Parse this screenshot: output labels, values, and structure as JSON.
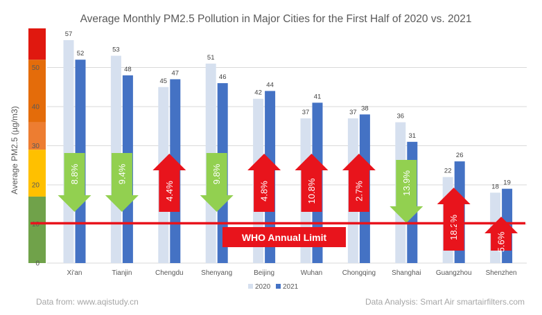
{
  "chart_data": {
    "type": "bar",
    "title": "Average Monthly PM2.5 Pollution in Major Cities for the First Half of 2020 vs. 2021",
    "ylabel": "Average PM2.5 (µg/m3)",
    "xlabel": "",
    "ylim": [
      0,
      60
    ],
    "yticks": [
      "0",
      "10",
      "20",
      "30",
      "40",
      "50"
    ],
    "categories": [
      "Xi'an",
      "Tianjin",
      "Chengdu",
      "Shenyang",
      "Beijing",
      "Wuhan",
      "Chongqing",
      "Shanghai",
      "Guangzhou",
      "Shenzhen"
    ],
    "series": [
      {
        "name": "2020",
        "color": "#d6e0ef",
        "values": [
          57,
          53,
          45,
          51,
          42,
          37,
          37,
          36,
          22,
          18
        ]
      },
      {
        "name": "2021",
        "color": "#4472c4",
        "values": [
          52,
          48,
          47,
          46,
          44,
          41,
          38,
          31,
          26,
          19
        ]
      }
    ],
    "changes": [
      {
        "label": "8.8%",
        "direction": "down"
      },
      {
        "label": "9.4%",
        "direction": "down"
      },
      {
        "label": "4.4%",
        "direction": "up"
      },
      {
        "label": "9.8%",
        "direction": "down"
      },
      {
        "label": "4.8%",
        "direction": "up"
      },
      {
        "label": "10.8%",
        "direction": "up"
      },
      {
        "label": "2.7%",
        "direction": "up"
      },
      {
        "label": "13.9%",
        "direction": "down"
      },
      {
        "label": "18.2%",
        "direction": "up"
      },
      {
        "label": "5.6%",
        "direction": "up"
      }
    ],
    "reference_line": {
      "value": 10,
      "label": "WHO Annual Limit",
      "color": "#e8141c"
    },
    "aqi_bands": [
      {
        "from": 0,
        "to": 17,
        "color": "#70a24a"
      },
      {
        "from": 17,
        "to": 29,
        "color": "#ffc000"
      },
      {
        "from": 29,
        "to": 36,
        "color": "#ed7d31"
      },
      {
        "from": 36,
        "to": 52,
        "color": "#e46c0a"
      },
      {
        "from": 52,
        "to": 60,
        "color": "#e0180f"
      }
    ],
    "colors": {
      "down": "#92d050",
      "up": "#e8141c"
    },
    "legend_position": "bottom",
    "grid": true
  },
  "footer": {
    "source": "Data from: www.aqistudy.cn",
    "credit": "Data Analysis: Smart Air smartairfilters.com"
  }
}
